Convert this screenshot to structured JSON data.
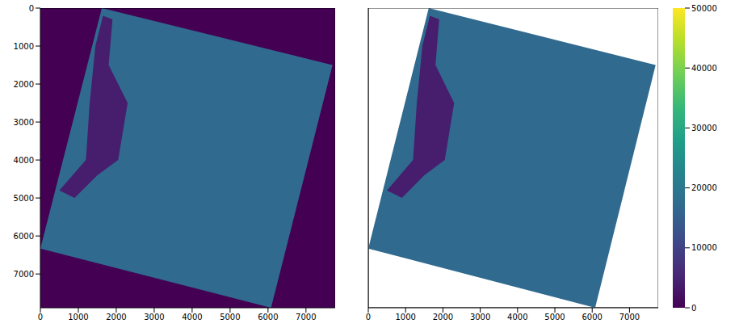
{
  "chart_data": [
    {
      "type": "image",
      "xlim": [
        0,
        7770
      ],
      "ylim": [
        7890,
        0
      ],
      "xticks": [
        0,
        1000,
        2000,
        3000,
        4000,
        5000,
        6000,
        7000
      ],
      "yticks": [
        0,
        1000,
        2000,
        3000,
        4000,
        5000,
        6000,
        7000
      ],
      "background_value": 0,
      "footprint": [
        [
          1620,
          0
        ],
        [
          7700,
          1500
        ],
        [
          6080,
          7890
        ],
        [
          0,
          6330
        ]
      ],
      "fill_value": 17000,
      "water": [
        [
          1650,
          200
        ],
        [
          1900,
          300
        ],
        [
          1800,
          1500
        ],
        [
          2300,
          2500
        ],
        [
          2050,
          4000
        ],
        [
          1500,
          4400
        ],
        [
          900,
          5000
        ],
        [
          500,
          4800
        ],
        [
          1200,
          4000
        ],
        [
          1300,
          2500
        ],
        [
          1450,
          1000
        ]
      ],
      "water_value": 4000
    },
    {
      "type": "image",
      "xlim": [
        0,
        7770
      ],
      "ylim": [
        7890,
        0
      ],
      "xticks": [
        0,
        1000,
        2000,
        3000,
        4000,
        5000,
        6000,
        7000
      ],
      "yticks": [
        0,
        1000,
        2000,
        3000,
        4000,
        5000,
        6000,
        7000
      ],
      "tick_labels": "x",
      "background_value": null,
      "footprint": [
        [
          1620,
          0
        ],
        [
          7700,
          1500
        ],
        [
          6080,
          7890
        ],
        [
          0,
          6330
        ]
      ],
      "fill_value": 17000,
      "water": [
        [
          1650,
          200
        ],
        [
          1900,
          300
        ],
        [
          1800,
          1500
        ],
        [
          2300,
          2500
        ],
        [
          2050,
          4000
        ],
        [
          1500,
          4400
        ],
        [
          900,
          5000
        ],
        [
          500,
          4800
        ],
        [
          1200,
          4000
        ],
        [
          1300,
          2500
        ],
        [
          1450,
          1000
        ]
      ],
      "water_value": 4000,
      "colorbar": {
        "range": [
          0,
          50000
        ],
        "ticks": [
          0,
          10000,
          20000,
          30000,
          40000,
          50000
        ]
      }
    }
  ]
}
